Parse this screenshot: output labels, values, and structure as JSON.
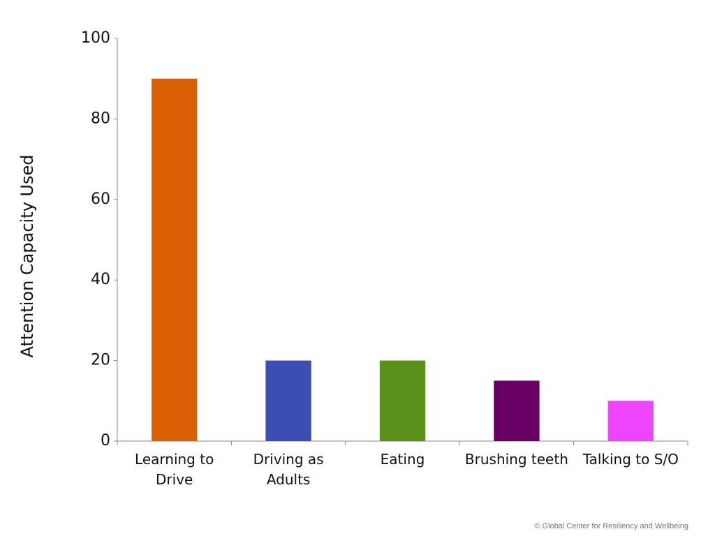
{
  "chart_data": {
    "type": "bar",
    "y_label": "Attention Capacity Used",
    "categories": [
      "Learning to Drive",
      "Driving as Adults",
      "Eating",
      "Brushing teeth",
      "Talking to S/O"
    ],
    "values": [
      90,
      20,
      20,
      15,
      10
    ],
    "colors": [
      "#d95f02",
      "#3a4fb0",
      "#5a8f1a",
      "#690066",
      "#ee44ff"
    ],
    "ylim": [
      0,
      100
    ],
    "yticks": [
      0,
      20,
      40,
      60,
      80,
      100
    ],
    "grid": false,
    "footer": "© Global Center for Resiliency and Wellbeing"
  }
}
